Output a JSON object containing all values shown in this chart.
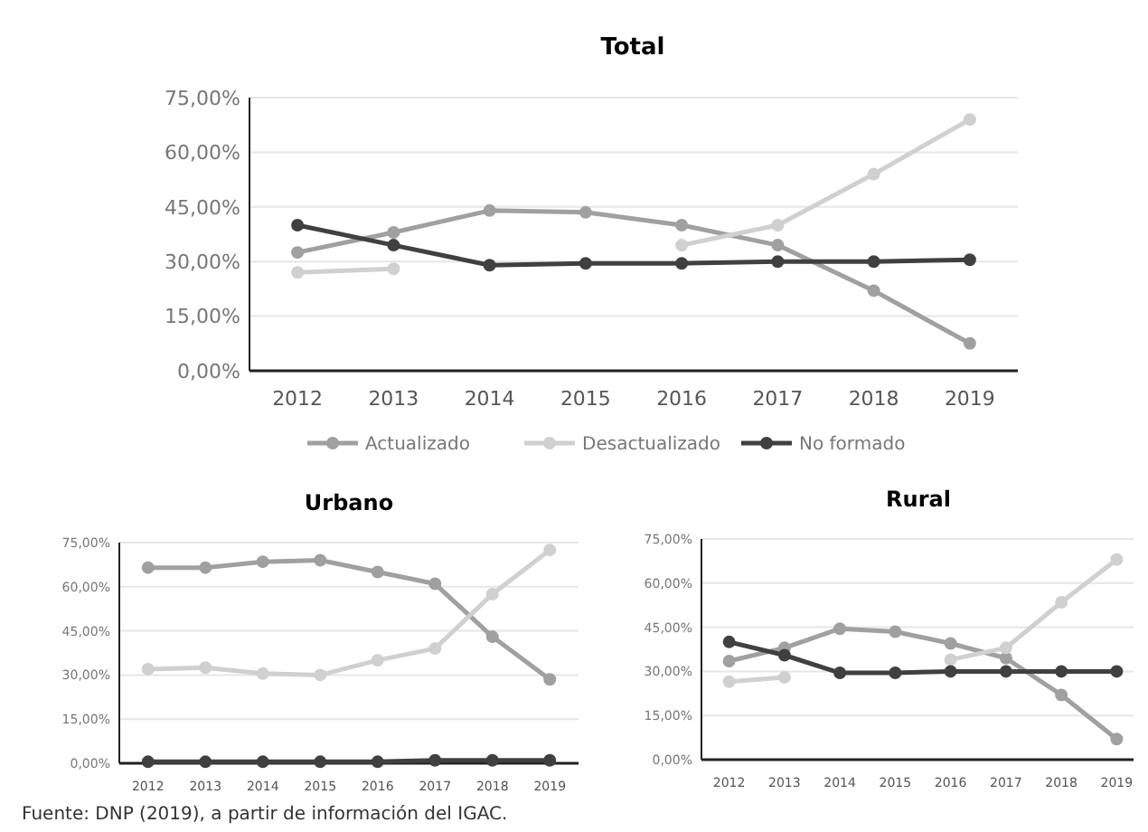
{
  "chart_data": [
    {
      "type": "line",
      "title": "Total",
      "categories": [
        "2012",
        "2013",
        "2014",
        "2015",
        "2016",
        "2017",
        "2018",
        "2019"
      ],
      "ylim": [
        0,
        75
      ],
      "yticks": [
        {
          "value": 0,
          "label": "0,00%"
        },
        {
          "value": 15,
          "label": "15,00%"
        },
        {
          "value": 30,
          "label": "30,00%"
        },
        {
          "value": 45,
          "label": "45,00%"
        },
        {
          "value": 60,
          "label": "60,00%"
        },
        {
          "value": 75,
          "label": "75,00%"
        }
      ],
      "grid": "y",
      "marker": "circle",
      "legend": "bottom",
      "annotations": [
        "Fuente: DNP (2019), a partir de información del IGAC."
      ],
      "series": [
        {
          "name": "Actualizado",
          "color": "#a0a0a0",
          "values": [
            32.5,
            38,
            44,
            43.5,
            40,
            34.5,
            22,
            7.5
          ]
        },
        {
          "name": "Desactualizado",
          "color": "#d0d0d0",
          "values": [
            27,
            28,
            null,
            null,
            34.5,
            40,
            54,
            69
          ]
        },
        {
          "name": "No formado",
          "color": "#404040",
          "values": [
            40,
            34.5,
            29,
            29.5,
            29.5,
            30,
            30,
            30.5
          ]
        }
      ]
    },
    {
      "type": "line",
      "title": "Urbano",
      "categories": [
        "2012",
        "2013",
        "2014",
        "2015",
        "2016",
        "2017",
        "2018",
        "2019"
      ],
      "ylim": [
        0,
        75
      ],
      "yticks": [
        {
          "value": 0,
          "label": "0,00%"
        },
        {
          "value": 15,
          "label": "15,00%"
        },
        {
          "value": 30,
          "label": "30,00%"
        },
        {
          "value": 45,
          "label": "45,00%"
        },
        {
          "value": 60,
          "label": "60,00%"
        },
        {
          "value": 75,
          "label": "75,00%"
        }
      ],
      "grid": "y",
      "marker": "circle",
      "series": [
        {
          "color": "#a0a0a0",
          "values": [
            66.5,
            66.5,
            68.5,
            69,
            65,
            61,
            43,
            28.5
          ]
        },
        {
          "color": "#d0d0d0",
          "values": [
            32,
            32.5,
            30.5,
            30,
            35,
            39,
            57.5,
            72.5
          ]
        },
        {
          "color": "#404040",
          "values": [
            0.5,
            0.5,
            0.5,
            0.5,
            0.5,
            1,
            1,
            1
          ]
        }
      ]
    },
    {
      "type": "line",
      "title": "Rural",
      "categories": [
        "2012",
        "2013",
        "2014",
        "2015",
        "2016",
        "2017",
        "2018",
        "2019"
      ],
      "ylim": [
        0,
        75
      ],
      "yticks": [
        {
          "value": 0,
          "label": "0,00%"
        },
        {
          "value": 15,
          "label": "15,00%"
        },
        {
          "value": 30,
          "label": "30,00%"
        },
        {
          "value": 45,
          "label": "45,00%"
        },
        {
          "value": 60,
          "label": "60,00%"
        },
        {
          "value": 75,
          "label": "75,00%"
        }
      ],
      "grid": "y",
      "marker": "circle",
      "series": [
        {
          "color": "#a0a0a0",
          "values": [
            33.5,
            38,
            44.5,
            43.5,
            39.5,
            34.5,
            22,
            7
          ]
        },
        {
          "color": "#d0d0d0",
          "values": [
            26.5,
            28,
            null,
            null,
            34,
            38,
            53.5,
            68
          ]
        },
        {
          "color": "#404040",
          "values": [
            40,
            35.5,
            29.5,
            29.5,
            30,
            30,
            30,
            30
          ]
        }
      ]
    }
  ]
}
